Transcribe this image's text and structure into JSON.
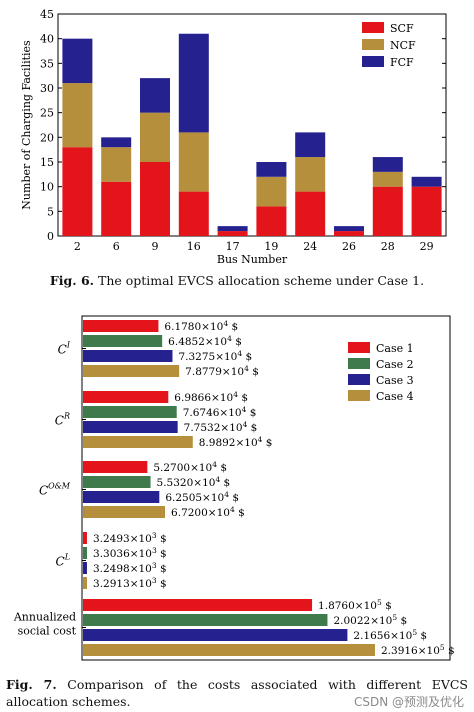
{
  "figure6": {
    "caption_label": "Fig. 6.",
    "caption_text": "The optimal EVCS allocation scheme under Case 1."
  },
  "figure7": {
    "caption_label": "Fig. 7.",
    "caption_text": "Comparison of the costs associated with different EVCS allocation schemes."
  },
  "watermark": "CSDN @预测及优化",
  "colors": {
    "red": "#e4141b",
    "gold": "#b58f3b",
    "blue": "#25218f",
    "green": "#3e7a4b"
  },
  "chart_data": [
    {
      "type": "bar",
      "stacked": true,
      "categories": [
        "2",
        "6",
        "9",
        "16",
        "17",
        "19",
        "24",
        "26",
        "28",
        "29"
      ],
      "series": [
        {
          "name": "SCF",
          "color": "#e4141b",
          "values": [
            18,
            11,
            15,
            9,
            1,
            6,
            9,
            1,
            10,
            10
          ]
        },
        {
          "name": "NCF",
          "color": "#b58f3b",
          "values": [
            13,
            7,
            10,
            12,
            0,
            6,
            7,
            0,
            3,
            0
          ]
        },
        {
          "name": "FCF",
          "color": "#25218f",
          "values": [
            9,
            2,
            7,
            20,
            1,
            3,
            5,
            1,
            3,
            2
          ]
        }
      ],
      "xlabel": "Bus Number",
      "ylabel": "Number of Charging Facilities",
      "ylim": [
        0,
        45
      ],
      "yticks": [
        "0",
        "5",
        "10",
        "15",
        "20",
        "25",
        "30",
        "35",
        "40",
        "45"
      ],
      "legend_position": "top-right",
      "grid": false
    },
    {
      "type": "bar",
      "orientation": "horizontal",
      "categories": [
        {
          "label": "C",
          "sup": "I"
        },
        {
          "label": "C",
          "sup": "R"
        },
        {
          "label": "C",
          "sup": "O&M"
        },
        {
          "label": "C",
          "sup": "L"
        },
        {
          "label": "Annualized\nsocial cost",
          "sup": ""
        }
      ],
      "series": [
        {
          "name": "Case 1",
          "color": "#e4141b",
          "values": [
            61780,
            69866,
            52700,
            3249.3,
            187600
          ],
          "labels": [
            {
              "mant": "6.1780",
              "exp": "4"
            },
            {
              "mant": "6.9866",
              "exp": "4"
            },
            {
              "mant": "5.2700",
              "exp": "4"
            },
            {
              "mant": "3.2493",
              "exp": "3"
            },
            {
              "mant": "1.8760",
              "exp": "5"
            }
          ]
        },
        {
          "name": "Case 2",
          "color": "#3e7a4b",
          "values": [
            64852,
            76746,
            55320,
            3303.6,
            200220
          ],
          "labels": [
            {
              "mant": "6.4852",
              "exp": "4"
            },
            {
              "mant": "7.6746",
              "exp": "4"
            },
            {
              "mant": "5.5320",
              "exp": "4"
            },
            {
              "mant": "3.3036",
              "exp": "3"
            },
            {
              "mant": "2.0022",
              "exp": "5"
            }
          ]
        },
        {
          "name": "Case 3",
          "color": "#25218f",
          "values": [
            73275,
            77532,
            62505,
            3249.8,
            216560
          ],
          "labels": [
            {
              "mant": "7.3275",
              "exp": "4"
            },
            {
              "mant": "7.7532",
              "exp": "4"
            },
            {
              "mant": "6.2505",
              "exp": "4"
            },
            {
              "mant": "3.2498",
              "exp": "3"
            },
            {
              "mant": "2.1656",
              "exp": "5"
            }
          ]
        },
        {
          "name": "Case 4",
          "color": "#b58f3b",
          "values": [
            78779,
            89892,
            67200,
            3291.3,
            239160
          ],
          "labels": [
            {
              "mant": "7.8779",
              "exp": "4"
            },
            {
              "mant": "8.9892",
              "exp": "4"
            },
            {
              "mant": "6.7200",
              "exp": "4"
            },
            {
              "mant": "3.2913",
              "exp": "3"
            },
            {
              "mant": "2.3916",
              "exp": "5"
            }
          ]
        }
      ],
      "value_unit": "$",
      "times_symbol": "×10",
      "legend_position": "top-right",
      "grid": false
    }
  ]
}
